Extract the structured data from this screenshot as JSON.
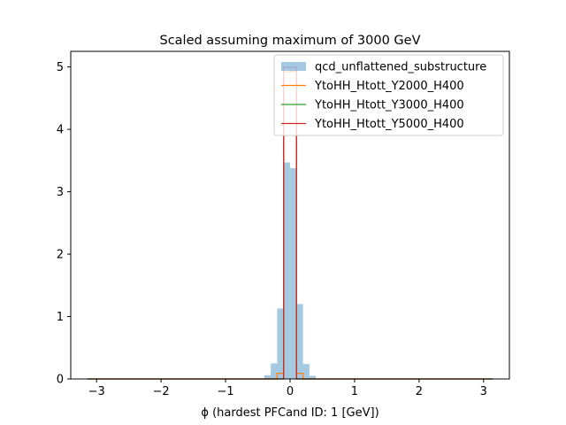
{
  "chart_data": {
    "type": "histogram",
    "title": "Scaled assuming maximum of 3000 GeV",
    "xlabel": "ϕ (hardest PFCand ID: 1 [GeV])",
    "ylabel": "",
    "xlim": [
      -3.4,
      3.4
    ],
    "ylim": [
      0,
      5.25
    ],
    "xticks": [
      -3,
      -2,
      -1,
      0,
      1,
      2,
      3
    ],
    "yticks": [
      0,
      1,
      2,
      3,
      4,
      5
    ],
    "xtick_labels": [
      "−3",
      "−2",
      "−1",
      "0",
      "1",
      "2",
      "3"
    ],
    "ytick_labels": [
      "0",
      "1",
      "2",
      "3",
      "4",
      "5"
    ],
    "bin_edges": [
      -0.4,
      -0.3,
      -0.2,
      -0.1,
      0.0,
      0.1,
      0.2,
      0.3,
      0.4
    ],
    "grid": false,
    "legend_position": "top-right",
    "series": [
      {
        "name": "qcd_unflattened_substructure",
        "style": "filled",
        "color": "#1f77b4",
        "values": [
          0.06,
          0.25,
          1.13,
          3.47,
          3.38,
          1.2,
          0.24,
          0.05
        ]
      },
      {
        "name": "YtoHH_Htott_Y2000_H400",
        "style": "step",
        "color": "#ff7f0e",
        "values": [
          0.0,
          0.0,
          0.09,
          4.92,
          4.93,
          0.09,
          0.0,
          0.0
        ]
      },
      {
        "name": "YtoHH_Htott_Y3000_H400",
        "style": "step",
        "color": "#2ca02c",
        "values": [
          0.0,
          0.0,
          0.0,
          5.0,
          5.0,
          0.0,
          0.0,
          0.0
        ]
      },
      {
        "name": "YtoHH_Htott_Y5000_H400",
        "style": "step",
        "color": "#d62728",
        "values": [
          0.0,
          0.0,
          0.0,
          5.0,
          5.0,
          0.0,
          0.0,
          0.0
        ]
      }
    ],
    "baseline_range": [
      -3.14,
      3.14
    ]
  }
}
